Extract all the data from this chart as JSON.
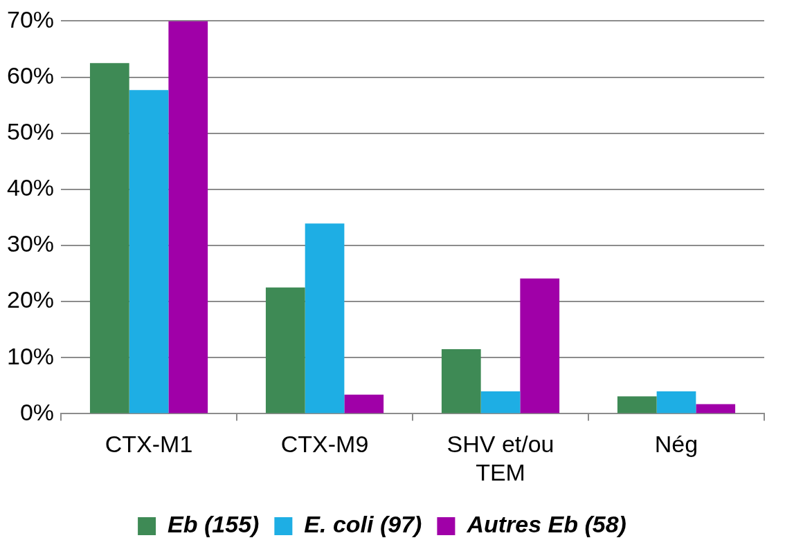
{
  "chart_data": {
    "type": "bar",
    "categories": [
      "CTX-M1",
      "CTX-M9",
      "SHV et/ou TEM",
      "Nég"
    ],
    "series": [
      {
        "name": "Eb (155)",
        "color": "#3e8a55",
        "values": [
          62.5,
          22.5,
          11.5,
          3.1
        ]
      },
      {
        "name": "E. coli (97)",
        "color": "#1eaee4",
        "values": [
          57.7,
          33.9,
          4.0,
          4.0
        ]
      },
      {
        "name": "Autres Eb (58)",
        "color": "#a000a8",
        "values": [
          70,
          3.4,
          24.1,
          1.7
        ]
      }
    ],
    "ylim": [
      0,
      70
    ],
    "yticks": [
      {
        "value": 0,
        "label": "0%"
      },
      {
        "value": 10,
        "label": "10%"
      },
      {
        "value": 20,
        "label": "20%"
      },
      {
        "value": 30,
        "label": "30%"
      },
      {
        "value": 40,
        "label": "40%"
      },
      {
        "value": 50,
        "label": "50%"
      },
      {
        "value": 60,
        "label": "60%"
      },
      {
        "value": 70,
        "label": "70%"
      }
    ],
    "grid": "y",
    "legend": "bottom"
  }
}
